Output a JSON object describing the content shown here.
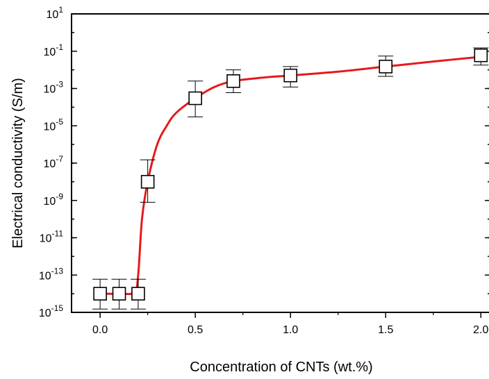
{
  "chart_data": {
    "type": "scatter",
    "xlabel": "Concentration of CNTs (wt.%)",
    "ylabel": "Electrical conductivity (S/m)",
    "x_ticks": [
      "0.0",
      "0.5",
      "1.0",
      "1.5",
      "2.0"
    ],
    "y_ticks": [
      {
        "value": -15,
        "base": "10",
        "exp": "-15"
      },
      {
        "value": -13,
        "base": "10",
        "exp": "-13"
      },
      {
        "value": -11,
        "base": "10",
        "exp": "-11"
      },
      {
        "value": -9,
        "base": "10",
        "exp": "-9"
      },
      {
        "value": -7,
        "base": "10",
        "exp": "-7"
      },
      {
        "value": -5,
        "base": "10",
        "exp": "-5"
      },
      {
        "value": -3,
        "base": "10",
        "exp": "-3"
      },
      {
        "value": -1,
        "base": "10",
        "exp": "-1"
      },
      {
        "value": 1,
        "base": "10",
        "exp": "1"
      }
    ],
    "xlim": [
      -0.15,
      2.05
    ],
    "ylim": [
      1e-15,
      10
    ],
    "y_scale": "log",
    "grid": false,
    "series": [
      {
        "marker": "open-square",
        "color": "#000000",
        "points": [
          {
            "x": 0.0,
            "y": 1e-14,
            "err_low": 1.5e-15,
            "err_high": 6e-14
          },
          {
            "x": 0.1,
            "y": 1e-14,
            "err_low": 1.5e-15,
            "err_high": 6e-14
          },
          {
            "x": 0.2,
            "y": 1e-14,
            "err_low": 1.5e-15,
            "err_high": 6e-14
          },
          {
            "x": 0.25,
            "y": 1e-08,
            "err_low": 8e-10,
            "err_high": 1.5e-07
          },
          {
            "x": 0.5,
            "y": 0.0003,
            "err_low": 3e-05,
            "err_high": 0.0025
          },
          {
            "x": 0.7,
            "y": 0.0025,
            "err_low": 0.0006,
            "err_high": 0.01
          },
          {
            "x": 1.0,
            "y": 0.005,
            "err_low": 0.0012,
            "err_high": 0.015
          },
          {
            "x": 1.5,
            "y": 0.015,
            "err_low": 0.0045,
            "err_high": 0.055
          },
          {
            "x": 2.0,
            "y": 0.06,
            "err_low": 0.018,
            "err_high": 0.15
          }
        ]
      }
    ],
    "fit_line": {
      "color": "#e41a1c",
      "points": [
        [
          0.0,
          1e-14
        ],
        [
          0.1,
          1e-14
        ],
        [
          0.18,
          1.2e-14
        ],
        [
          0.2,
          1e-13
        ],
        [
          0.22,
          1e-10
        ],
        [
          0.25,
          1e-08
        ],
        [
          0.3,
          1e-06
        ],
        [
          0.35,
          1e-05
        ],
        [
          0.4,
          5e-05
        ],
        [
          0.5,
          0.0003
        ],
        [
          0.6,
          0.0012
        ],
        [
          0.7,
          0.0025
        ],
        [
          0.85,
          0.0038
        ],
        [
          1.0,
          0.005
        ],
        [
          1.25,
          0.008
        ],
        [
          1.5,
          0.015
        ],
        [
          1.75,
          0.028
        ],
        [
          2.0,
          0.05
        ]
      ]
    }
  }
}
